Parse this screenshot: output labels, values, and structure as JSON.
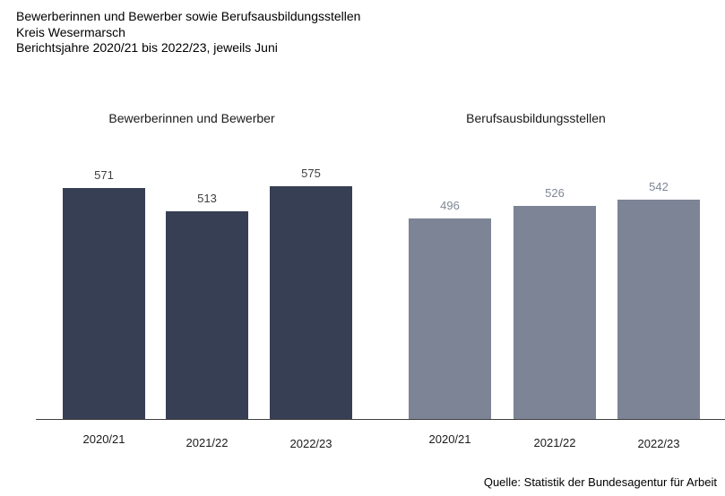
{
  "chart_data": {
    "type": "bar",
    "title": "Bewerberinnen und Bewerber sowie Berufsausbildungsstellen",
    "subtitle": "Kreis Wesermarsch",
    "period_note": "Berichtsjahre 2020/21 bis 2022/23, jeweils Juni",
    "categories": [
      "2020/21",
      "2021/22",
      "2022/23"
    ],
    "series": [
      {
        "name": "Bewerberinnen und Bewerber",
        "values": [
          571,
          513,
          575
        ],
        "bar_color": "#373F54",
        "label_color": "#404040"
      },
      {
        "name": "Berufsausbildungsstellen",
        "values": [
          496,
          526,
          542
        ],
        "bar_color": "#7C8495",
        "label_color": "#7F8796"
      }
    ],
    "grid": false,
    "legend": false,
    "axis_color": "#404040",
    "source": "Quelle: Statistik der Bundesagentur für Arbeit"
  }
}
